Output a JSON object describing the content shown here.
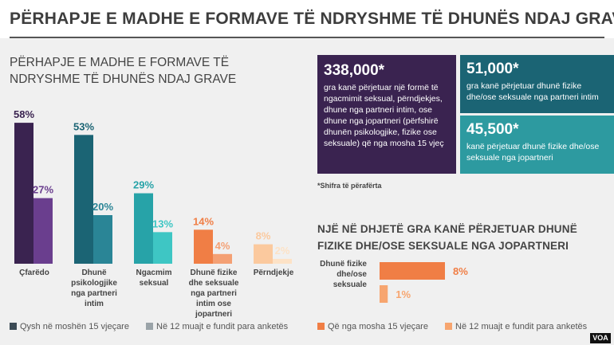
{
  "title": "PËRHAPJE E MADHE E FORMAVE TË NDRYSHME TË DHUNËS NDAJ GRAVE",
  "chart_data": [
    {
      "type": "bar",
      "title": "PËRHAPJE E MADHE E FORMAVE TË NDRYSHME TË DHUNËS NDAJ GRAVE",
      "categories": [
        "Çfarëdo",
        "Dhunë psikologjike nga partneri intim",
        "Ngacmim seksual",
        "Dhunë fizike dhe seksuale nga partneri intim ose jopartneri",
        "Përndjekje"
      ],
      "series": [
        {
          "name": "Qysh në moshën 15 vjeçare",
          "values": [
            58,
            53,
            29,
            14,
            8
          ],
          "labels": [
            "58%",
            "53%",
            "29%",
            "14%",
            "8%"
          ]
        },
        {
          "name": "Në 12 muajt e fundit para anketës",
          "values": [
            27,
            20,
            13,
            4,
            2
          ],
          "labels": [
            "27%",
            "20%",
            "13%",
            "4%",
            "2%"
          ]
        }
      ],
      "ylim": [
        0,
        60
      ],
      "unit": "%",
      "grid": false,
      "legend_position": "bottom",
      "colors": {
        "primary": [
          "#3a2350",
          "#1b6474",
          "#27a3a8",
          "#f07e45",
          "#fbc99e"
        ],
        "secondary": [
          "#6a3e8e",
          "#2a8596",
          "#3ec6c4",
          "#f4a074",
          "#fde2c6"
        ],
        "legend": [
          "#3b4a55",
          "#9aa3a8"
        ]
      }
    },
    {
      "type": "bar",
      "orientation": "horizontal",
      "title": "NJË NË DHJETË GRA KANË PËRJETUAR DHUNË FIZIKE DHE/OSE SEKSUALE NGA JOPARTNERI",
      "categories": [
        "Dhunë fizike dhe/ose seksuale"
      ],
      "series": [
        {
          "name": "Që nga mosha 15 vjeçare",
          "values": [
            8
          ],
          "labels": [
            "8%"
          ],
          "color": "#f07e45"
        },
        {
          "name": "Në 12 muajt e fundit para anketës",
          "values": [
            1
          ],
          "labels": [
            "1%"
          ],
          "color": "#f7a56f"
        }
      ],
      "xlim": [
        0,
        8
      ],
      "unit": "%",
      "legend_position": "bottom"
    }
  ],
  "stats": [
    {
      "number": "338,000*",
      "text": "gra kanë përjetuar një formë të ngacmimit seksual, përndjekjes, dhune nga partneri intim, ose dhune nga jopartneri (përfshirë dhunën psikologjike, fizike ose seksuale) që nga mosha 15 vjeç",
      "color": "#3a2350"
    },
    {
      "number": "51,000*",
      "text": "gra kanë përjetuar dhunë fizike dhe/ose seksuale nga partneri intim",
      "color": "#1b6474"
    },
    {
      "number": "45,500*",
      "text": "kanë përjetuar dhunë fizike dhe/ose seksuale nga jopartneri",
      "color": "#2d9aa0"
    }
  ],
  "footnote": "*Shifra të përafërta",
  "logo": "VOA"
}
